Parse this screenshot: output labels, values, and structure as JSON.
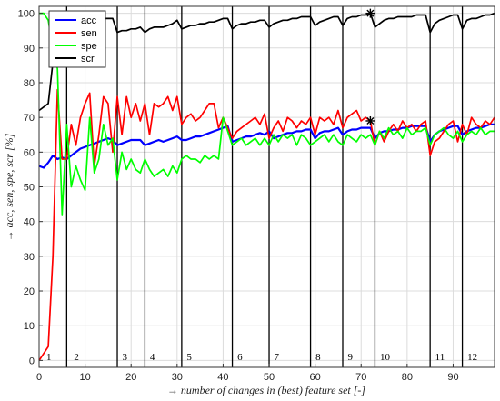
{
  "chart_data": {
    "type": "line",
    "xlabel": "→  number of changes in (best) feature set [-]",
    "ylabel": "→  acc, sen, spe, scr [%]",
    "xlim": [
      0,
      99
    ],
    "ylim": [
      -2,
      102
    ],
    "xticks": [
      0,
      10,
      20,
      30,
      40,
      50,
      60,
      70,
      80,
      90
    ],
    "yticks": [
      0,
      10,
      20,
      30,
      40,
      50,
      60,
      70,
      80,
      90,
      100
    ],
    "grid": true,
    "legend_position": "top-left",
    "markers": [
      {
        "series": "scr",
        "x": 72,
        "y": 100
      },
      {
        "series": "sen",
        "x": 72,
        "y": 69
      }
    ],
    "segments": {
      "boundaries": [
        6,
        17,
        23,
        31,
        42,
        50,
        59,
        66,
        73,
        85,
        92
      ],
      "labels": [
        "1",
        "2",
        "3",
        "4",
        "5",
        "6",
        "7",
        "8",
        "9",
        "10",
        "11",
        "12"
      ],
      "label_x": [
        1,
        7,
        17.5,
        23.5,
        31.5,
        42.5,
        50.5,
        59.5,
        66.5,
        73.5,
        85.5,
        92.5
      ]
    },
    "series": [
      {
        "name": "acc",
        "color": "#0000ff",
        "x": [
          0,
          1,
          2,
          3,
          4,
          5,
          6,
          7,
          8,
          9,
          10,
          11,
          12,
          13,
          14,
          15,
          16,
          17,
          18,
          19,
          20,
          21,
          22,
          23,
          24,
          25,
          26,
          27,
          28,
          29,
          30,
          31,
          32,
          33,
          34,
          35,
          36,
          37,
          38,
          39,
          40,
          41,
          42,
          43,
          44,
          45,
          46,
          47,
          48,
          49,
          50,
          51,
          52,
          53,
          54,
          55,
          56,
          57,
          58,
          59,
          60,
          61,
          62,
          63,
          64,
          65,
          66,
          67,
          68,
          69,
          70,
          71,
          72,
          73,
          74,
          75,
          76,
          77,
          78,
          79,
          80,
          81,
          82,
          83,
          84,
          85,
          86,
          87,
          88,
          89,
          90,
          91,
          92,
          93,
          94,
          95,
          96,
          97,
          98,
          99
        ],
        "y": [
          56,
          55.5,
          57,
          59,
          58,
          58.5,
          58,
          59,
          60,
          61,
          61.5,
          62,
          62.5,
          63,
          63.5,
          64,
          63.5,
          62,
          62.5,
          63,
          63.5,
          63.5,
          63.5,
          62,
          62.5,
          63,
          63.5,
          63,
          63.5,
          64,
          64.5,
          63.5,
          63.5,
          64,
          64.5,
          64.5,
          65,
          65.5,
          66,
          66.5,
          67,
          67.5,
          63,
          63.5,
          64,
          64.5,
          64.5,
          65,
          65.5,
          65,
          66,
          64,
          64.5,
          65,
          65.5,
          65.5,
          66,
          66,
          66.5,
          66.5,
          64,
          65.5,
          66,
          66,
          66.5,
          67,
          65,
          66,
          66.5,
          66.5,
          67,
          67,
          67,
          64,
          65.5,
          66,
          66,
          66.5,
          66.5,
          67,
          67,
          67.5,
          67.5,
          67.5,
          67.5,
          63,
          65,
          66,
          66.5,
          67,
          67.5,
          67.5,
          65,
          66,
          66.5,
          67,
          67,
          67.5,
          68,
          68
        ]
      },
      {
        "name": "sen",
        "color": "#ff0000",
        "x": [
          0,
          1,
          2,
          3,
          4,
          5,
          6,
          7,
          8,
          9,
          10,
          11,
          12,
          13,
          14,
          15,
          16,
          17,
          18,
          19,
          20,
          21,
          22,
          23,
          24,
          25,
          26,
          27,
          28,
          29,
          30,
          31,
          32,
          33,
          34,
          35,
          36,
          37,
          38,
          39,
          40,
          41,
          42,
          43,
          44,
          45,
          46,
          47,
          48,
          49,
          50,
          51,
          52,
          53,
          54,
          55,
          56,
          57,
          58,
          59,
          60,
          61,
          62,
          63,
          64,
          65,
          66,
          67,
          68,
          69,
          70,
          71,
          72,
          73,
          74,
          75,
          76,
          77,
          78,
          79,
          80,
          81,
          82,
          83,
          84,
          85,
          86,
          87,
          88,
          89,
          90,
          91,
          92,
          93,
          94,
          95,
          96,
          97,
          98,
          99
        ],
        "y": [
          0,
          2,
          4,
          30,
          78,
          58,
          58,
          68,
          62,
          70,
          74,
          77,
          56,
          65,
          76,
          74,
          60,
          76,
          65,
          76,
          70,
          74,
          69,
          74,
          65,
          74,
          73,
          74,
          76,
          72,
          76,
          68,
          70,
          71,
          69,
          70,
          72,
          74,
          74,
          67,
          70,
          67,
          64,
          66,
          67,
          68,
          69,
          70,
          68,
          71,
          64,
          67,
          69,
          66,
          70,
          69,
          67,
          69,
          68,
          70,
          65,
          70,
          69,
          70,
          68,
          72,
          67,
          70,
          71,
          72,
          69,
          70,
          69,
          62,
          66,
          63,
          66,
          68,
          66,
          69,
          67,
          68,
          66,
          68,
          69,
          59,
          63,
          64,
          66,
          68,
          69,
          63,
          68,
          65,
          70,
          68,
          67,
          69,
          68,
          70
        ]
      },
      {
        "name": "spe",
        "color": "#00ff00",
        "x": [
          0,
          1,
          2,
          3,
          4,
          5,
          6,
          7,
          8,
          9,
          10,
          11,
          12,
          13,
          14,
          15,
          16,
          17,
          18,
          19,
          20,
          21,
          22,
          23,
          24,
          25,
          26,
          27,
          28,
          29,
          30,
          31,
          32,
          33,
          34,
          35,
          36,
          37,
          38,
          39,
          40,
          41,
          42,
          43,
          44,
          45,
          46,
          47,
          48,
          49,
          50,
          51,
          52,
          53,
          54,
          55,
          56,
          57,
          58,
          59,
          60,
          61,
          62,
          63,
          64,
          65,
          66,
          67,
          68,
          69,
          70,
          71,
          72,
          73,
          74,
          75,
          76,
          77,
          78,
          79,
          80,
          81,
          82,
          83,
          84,
          85,
          86,
          87,
          88,
          89,
          90,
          91,
          92,
          93,
          94,
          95,
          96,
          97,
          98,
          99
        ],
        "y": [
          100,
          100,
          98,
          90,
          84,
          42,
          68,
          50,
          56,
          52,
          49,
          70,
          54,
          58,
          68,
          62,
          64,
          52,
          60,
          55,
          58,
          55,
          54,
          58,
          55,
          53,
          54,
          55,
          53,
          56,
          54,
          58,
          59,
          58,
          58,
          57,
          59,
          58,
          59,
          58,
          70,
          66,
          62,
          63,
          64,
          62,
          63,
          64,
          62,
          64,
          62,
          65,
          63,
          65,
          64,
          65,
          62,
          65,
          64,
          62,
          63,
          64,
          65,
          63,
          65,
          63,
          62,
          65,
          64,
          63,
          65,
          64,
          65,
          62,
          66,
          64,
          67,
          65,
          66,
          64,
          67,
          65,
          66,
          66,
          67,
          62,
          65,
          66,
          67,
          65,
          64,
          66,
          63,
          65,
          66,
          65,
          67,
          65,
          66,
          66
        ]
      },
      {
        "name": "scr",
        "color": "#000000",
        "x": [
          0,
          1,
          2,
          3,
          4,
          5,
          6,
          7,
          8,
          9,
          10,
          11,
          12,
          13,
          14,
          15,
          16,
          17,
          18,
          19,
          20,
          21,
          22,
          23,
          24,
          25,
          26,
          27,
          28,
          29,
          30,
          31,
          32,
          33,
          34,
          35,
          36,
          37,
          38,
          39,
          40,
          41,
          42,
          43,
          44,
          45,
          46,
          47,
          48,
          49,
          50,
          51,
          52,
          53,
          54,
          55,
          56,
          57,
          58,
          59,
          60,
          61,
          62,
          63,
          64,
          65,
          66,
          67,
          68,
          69,
          70,
          71,
          72,
          73,
          74,
          75,
          76,
          77,
          78,
          79,
          80,
          81,
          82,
          83,
          84,
          85,
          86,
          87,
          88,
          89,
          90,
          91,
          92,
          93,
          94,
          95,
          96,
          97,
          98,
          99
        ],
        "y": [
          72,
          73,
          74,
          86,
          88,
          95,
          93,
          96,
          97,
          97.5,
          98,
          98,
          98,
          98.5,
          98.5,
          98.5,
          98.5,
          94.5,
          95,
          95,
          95.5,
          95.5,
          96,
          94.5,
          95.5,
          96,
          96,
          96,
          96.5,
          97,
          98,
          95.5,
          96,
          96.5,
          96.5,
          97,
          97,
          97.5,
          97.5,
          98,
          98.5,
          98.5,
          95.5,
          96.5,
          97,
          97,
          97.5,
          97.5,
          98,
          98,
          96,
          97,
          97.5,
          98,
          98,
          98.5,
          98.5,
          99,
          99,
          99,
          96.5,
          97.5,
          98,
          98.5,
          99,
          99,
          96.5,
          98.5,
          99,
          99,
          99.5,
          99.5,
          100,
          96,
          97,
          98,
          98.5,
          98.5,
          99,
          99,
          99,
          99,
          99.5,
          99.5,
          99.5,
          94.5,
          97,
          98,
          98.5,
          99,
          99.5,
          99.5,
          95.5,
          98,
          98.5,
          98.5,
          99,
          99.5,
          99.5,
          100
        ]
      }
    ]
  }
}
